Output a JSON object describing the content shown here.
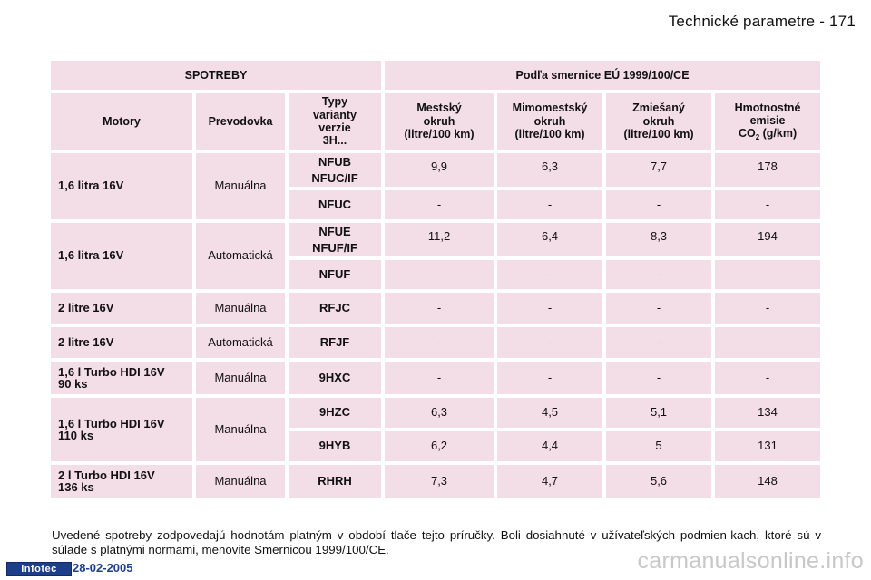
{
  "header": {
    "title": "Technické parametre - 171"
  },
  "table": {
    "group_left": "SPOTREBY",
    "group_right": "Podľa smernice EÚ 1999/100/CE",
    "col_motory": "Motory",
    "col_prevodovka": "Prevodovka",
    "col_typy": [
      "Typy",
      "varianty",
      "verzie",
      "3H..."
    ],
    "col_mestsky": [
      "Mestský",
      "okruh",
      "(litre/100 km)"
    ],
    "col_mimomestsky": [
      "Mimomestský",
      "okruh",
      "(litre/100 km)"
    ],
    "col_zmiesany": [
      "Zmiešaný",
      "okruh",
      "(litre/100 km)"
    ],
    "col_emisie": [
      "Hmotnostné",
      "emisie",
      "CO",
      "2",
      "(g/km)"
    ],
    "rows": [
      {
        "motor": "1,6 litra 16V",
        "gear": "Manuálna",
        "variants": [
          {
            "code": [
              "NFUB",
              "NFUC/IF"
            ],
            "values": [
              "9,9",
              "6,3",
              "7,7",
              "178"
            ]
          },
          {
            "code": [
              "NFUC"
            ],
            "values": [
              "-",
              "-",
              "-",
              "-"
            ]
          }
        ]
      },
      {
        "motor": "1,6 litra 16V",
        "gear": "Automatická",
        "variants": [
          {
            "code": [
              "NFUE",
              "NFUF/IF"
            ],
            "values": [
              "11,2",
              "6,4",
              "8,3",
              "194"
            ]
          },
          {
            "code": [
              "NFUF"
            ],
            "values": [
              "-",
              "-",
              "-",
              "-"
            ]
          }
        ]
      },
      {
        "motor": "2 litre 16V",
        "gear": "Manuálna",
        "variants": [
          {
            "code": [
              "RFJC"
            ],
            "values": [
              "-",
              "-",
              "-",
              "-"
            ]
          }
        ]
      },
      {
        "motor": "2 litre 16V",
        "gear": "Automatická",
        "variants": [
          {
            "code": [
              "RFJF"
            ],
            "values": [
              "-",
              "-",
              "-",
              "-"
            ]
          }
        ]
      },
      {
        "motor": [
          "1,6 l Turbo HDI 16V",
          "90 ks"
        ],
        "gear": "Manuálna",
        "variants": [
          {
            "code": [
              "9HXC"
            ],
            "values": [
              "-",
              "-",
              "-",
              "-"
            ]
          }
        ]
      },
      {
        "motor": [
          "1,6 l Turbo HDI 16V",
          "110 ks"
        ],
        "gear": "Manuálna",
        "variants": [
          {
            "code": [
              "9HZC"
            ],
            "values": [
              "6,3",
              "4,5",
              "5,1",
              "134"
            ]
          },
          {
            "code": [
              "9HYB"
            ],
            "values": [
              "6,2",
              "4,4",
              "5",
              "131"
            ]
          }
        ]
      },
      {
        "motor": [
          "2 l Turbo HDI 16V",
          "136 ks"
        ],
        "gear": "Manuálna",
        "variants": [
          {
            "code": [
              "RHRH"
            ],
            "values": [
              "7,3",
              "4,7",
              "5,6",
              "148"
            ]
          }
        ]
      }
    ]
  },
  "note": "Uvedené spotreby zodpovedajú hodnotám platným v období tlače tejto príručky. Boli dosiahnuté v užívateľských podmien-kach, ktoré sú v súlade s platnými normami, menovite Smernicou 1999/100/CE.",
  "footer": {
    "logo": "Infotec",
    "date": "28-02-2005"
  },
  "watermark": "carmanualsonline.info",
  "colors": {
    "cell_bg": "#f3dde6",
    "logo_bg": "#1d3f8a"
  }
}
